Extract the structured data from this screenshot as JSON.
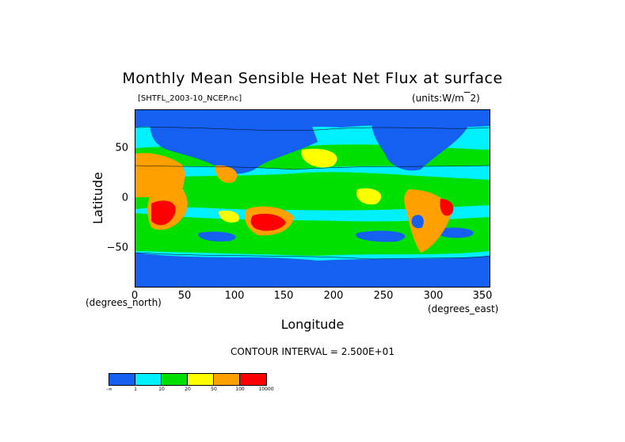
{
  "chart_data": {
    "type": "heatmap",
    "title": "Monthly Mean Sensible Heat Net Flux at surface",
    "file_label": "[SHTFL_2003-10_NCEP.nc]",
    "units_label": "(units:W/m^2)",
    "xlabel": "Longitude",
    "ylabel": "Latitude",
    "x_unit_left": "(degrees_north)",
    "x_unit_right": "(degrees_east)",
    "xlim": [
      0,
      357.5
    ],
    "ylim": [
      -88,
      88
    ],
    "x_ticks": [
      "0",
      "50",
      "100",
      "150",
      "200",
      "250",
      "300",
      "350"
    ],
    "y_ticks": [
      "50",
      "0",
      "−50"
    ],
    "contour_interval": "CONTOUR INTERVAL = 2.500E+01",
    "colorbar": {
      "colors": [
        "#1560f0",
        "#00f0ff",
        "#00e000",
        "#ffff00",
        "#ffa000",
        "#ff0000"
      ],
      "labels": [
        "-∞",
        "1",
        "10",
        "20",
        "50",
        "100",
        "10000"
      ]
    }
  }
}
